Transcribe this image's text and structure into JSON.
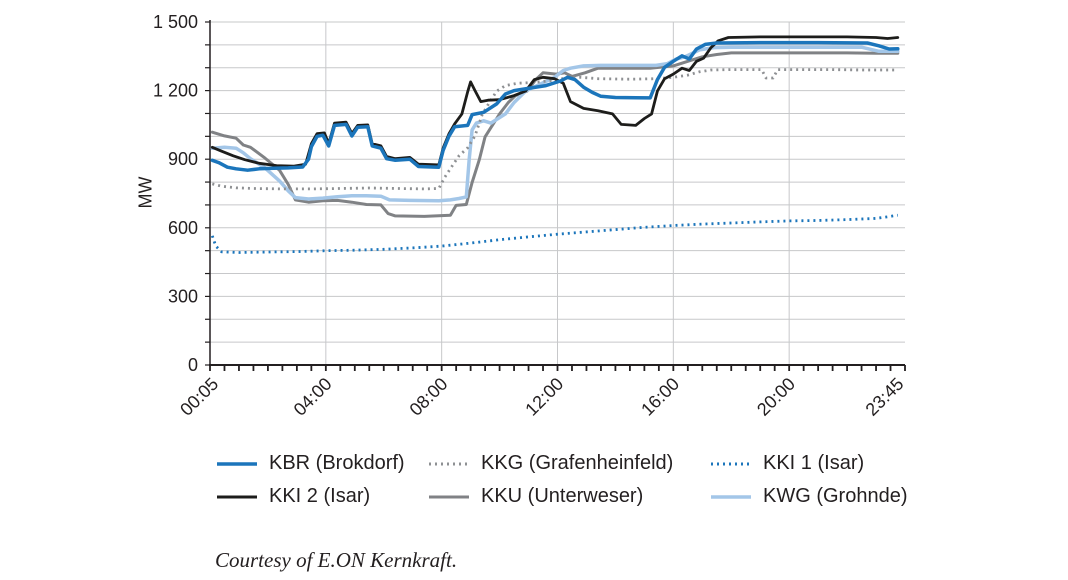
{
  "caption": "Courtesy of E.ON Kernkraft.",
  "chart_data": {
    "type": "line",
    "title": "",
    "xlabel": "",
    "ylabel": "MW",
    "ylim": [
      0,
      1500
    ],
    "xlim_hours": [
      0,
      24
    ],
    "grid": true,
    "grid_color": "#c7c8ca",
    "axis_color": "#231f20",
    "y_minor_step": 100,
    "y_major_ticks": [
      0,
      300,
      600,
      900,
      1200,
      1500
    ],
    "y_tick_labels": [
      "0",
      "300",
      "600",
      "900",
      "1 200",
      "1 500"
    ],
    "x_minor_step_hours": 0.5,
    "x_tick_hours": [
      0.083,
      4,
      8,
      12,
      16,
      20,
      23.75
    ],
    "x_tick_labels": [
      "00:05",
      "04:00",
      "08:00",
      "12:00",
      "16:00",
      "20:00",
      "23:45"
    ],
    "x_gridline_hours": [
      4,
      8,
      12,
      16,
      20
    ],
    "legend_position": "bottom",
    "series": [
      {
        "id": "kbr",
        "name": "KBR (Brokdorf)",
        "color": "#1b75bb",
        "style": "solid",
        "width": 3.5,
        "points": [
          [
            0.08,
            895
          ],
          [
            0.3,
            885
          ],
          [
            0.6,
            865
          ],
          [
            0.9,
            858
          ],
          [
            1.3,
            852
          ],
          [
            1.7,
            858
          ],
          [
            2.2,
            860
          ],
          [
            2.7,
            862
          ],
          [
            3.2,
            866
          ],
          [
            3.4,
            900
          ],
          [
            3.5,
            955
          ],
          [
            3.7,
            1000
          ],
          [
            3.9,
            1005
          ],
          [
            4.1,
            958
          ],
          [
            4.3,
            1048
          ],
          [
            4.7,
            1052
          ],
          [
            4.9,
            1002
          ],
          [
            5.1,
            1040
          ],
          [
            5.45,
            1042
          ],
          [
            5.6,
            958
          ],
          [
            5.9,
            948
          ],
          [
            6.1,
            902
          ],
          [
            6.4,
            895
          ],
          [
            6.9,
            900
          ],
          [
            7.2,
            868
          ],
          [
            7.9,
            865
          ],
          [
            8.05,
            938
          ],
          [
            8.25,
            1000
          ],
          [
            8.45,
            1042
          ],
          [
            8.9,
            1048
          ],
          [
            9.05,
            1095
          ],
          [
            9.45,
            1105
          ],
          [
            9.9,
            1142
          ],
          [
            10.2,
            1185
          ],
          [
            10.5,
            1200
          ],
          [
            11.1,
            1212
          ],
          [
            11.6,
            1222
          ],
          [
            12.1,
            1242
          ],
          [
            12.35,
            1258
          ],
          [
            12.6,
            1248
          ],
          [
            12.9,
            1215
          ],
          [
            13.2,
            1192
          ],
          [
            13.5,
            1175
          ],
          [
            14,
            1170
          ],
          [
            15.2,
            1168
          ],
          [
            15.45,
            1248
          ],
          [
            15.7,
            1302
          ],
          [
            16,
            1328
          ],
          [
            16.3,
            1352
          ],
          [
            16.55,
            1338
          ],
          [
            16.8,
            1382
          ],
          [
            17.1,
            1402
          ],
          [
            17.5,
            1408
          ],
          [
            19,
            1410
          ],
          [
            21,
            1410
          ],
          [
            22.7,
            1408
          ],
          [
            23.1,
            1396
          ],
          [
            23.45,
            1382
          ],
          [
            23.75,
            1383
          ]
        ]
      },
      {
        "id": "kkg",
        "name": "KKG (Grafenheinfeld)",
        "color": "#8e9093",
        "style": "dotted",
        "width": 2.8,
        "points": [
          [
            0.08,
            792
          ],
          [
            0.4,
            782
          ],
          [
            0.9,
            775
          ],
          [
            1.5,
            772
          ],
          [
            2.5,
            770
          ],
          [
            3.5,
            770
          ],
          [
            4.5,
            772
          ],
          [
            5.5,
            774
          ],
          [
            6.5,
            772
          ],
          [
            7.4,
            770
          ],
          [
            7.9,
            772
          ],
          [
            8.1,
            820
          ],
          [
            8.35,
            868
          ],
          [
            8.6,
            915
          ],
          [
            8.9,
            950
          ],
          [
            9.15,
            1002
          ],
          [
            9.4,
            1095
          ],
          [
            9.65,
            1148
          ],
          [
            9.9,
            1198
          ],
          [
            10.2,
            1222
          ],
          [
            10.6,
            1232
          ],
          [
            11.2,
            1236
          ],
          [
            11.8,
            1244
          ],
          [
            12.3,
            1255
          ],
          [
            12.8,
            1258
          ],
          [
            13.4,
            1252
          ],
          [
            14.5,
            1250
          ],
          [
            15.4,
            1252
          ],
          [
            16,
            1258
          ],
          [
            16.5,
            1268
          ],
          [
            16.9,
            1282
          ],
          [
            17.3,
            1290
          ],
          [
            18,
            1292
          ],
          [
            19.05,
            1292
          ],
          [
            19.2,
            1255
          ],
          [
            19.45,
            1255
          ],
          [
            19.6,
            1292
          ],
          [
            20.5,
            1292
          ],
          [
            21.5,
            1292
          ],
          [
            22.5,
            1290
          ],
          [
            23.75,
            1290
          ]
        ]
      },
      {
        "id": "kki1",
        "name": "KKI 1 (Isar)",
        "color": "#1b75bb",
        "style": "dotted",
        "width": 2.8,
        "points": [
          [
            0.08,
            565
          ],
          [
            0.2,
            520
          ],
          [
            0.4,
            495
          ],
          [
            1,
            492
          ],
          [
            2,
            494
          ],
          [
            3,
            496
          ],
          [
            4,
            500
          ],
          [
            5,
            502
          ],
          [
            6,
            506
          ],
          [
            7,
            512
          ],
          [
            8,
            520
          ],
          [
            9,
            533
          ],
          [
            10,
            548
          ],
          [
            11,
            560
          ],
          [
            12,
            572
          ],
          [
            13,
            582
          ],
          [
            14,
            592
          ],
          [
            15,
            602
          ],
          [
            16,
            610
          ],
          [
            17,
            616
          ],
          [
            18,
            621
          ],
          [
            19,
            626
          ],
          [
            20,
            630
          ],
          [
            21,
            632
          ],
          [
            22,
            636
          ],
          [
            23,
            641
          ],
          [
            23.4,
            648
          ],
          [
            23.75,
            655
          ]
        ]
      },
      {
        "id": "kki2",
        "name": "KKI 2 (Isar)",
        "color": "#1d1d1b",
        "style": "solid",
        "width": 2.8,
        "points": [
          [
            0.08,
            952
          ],
          [
            0.4,
            935
          ],
          [
            0.8,
            915
          ],
          [
            1.2,
            898
          ],
          [
            1.7,
            882
          ],
          [
            2.3,
            872
          ],
          [
            2.9,
            870
          ],
          [
            3.3,
            878
          ],
          [
            3.5,
            968
          ],
          [
            3.7,
            1012
          ],
          [
            3.95,
            1015
          ],
          [
            4.1,
            968
          ],
          [
            4.3,
            1058
          ],
          [
            4.7,
            1062
          ],
          [
            4.9,
            1012
          ],
          [
            5.1,
            1048
          ],
          [
            5.45,
            1050
          ],
          [
            5.6,
            968
          ],
          [
            5.9,
            958
          ],
          [
            6.1,
            912
          ],
          [
            6.4,
            902
          ],
          [
            6.9,
            908
          ],
          [
            7.2,
            878
          ],
          [
            7.9,
            875
          ],
          [
            8.05,
            948
          ],
          [
            8.25,
            1010
          ],
          [
            8.45,
            1055
          ],
          [
            8.7,
            1098
          ],
          [
            8.9,
            1195
          ],
          [
            9,
            1238
          ],
          [
            9.15,
            1200
          ],
          [
            9.35,
            1152
          ],
          [
            9.6,
            1158
          ],
          [
            10,
            1160
          ],
          [
            10.5,
            1178
          ],
          [
            10.9,
            1198
          ],
          [
            11.2,
            1248
          ],
          [
            11.5,
            1258
          ],
          [
            11.9,
            1252
          ],
          [
            12.2,
            1232
          ],
          [
            12.45,
            1152
          ],
          [
            12.9,
            1122
          ],
          [
            13.4,
            1112
          ],
          [
            13.9,
            1098
          ],
          [
            14.2,
            1052
          ],
          [
            14.7,
            1048
          ],
          [
            15,
            1078
          ],
          [
            15.25,
            1098
          ],
          [
            15.45,
            1198
          ],
          [
            15.7,
            1252
          ],
          [
            16,
            1272
          ],
          [
            16.3,
            1298
          ],
          [
            16.55,
            1288
          ],
          [
            16.8,
            1328
          ],
          [
            17.05,
            1342
          ],
          [
            17.3,
            1388
          ],
          [
            17.55,
            1418
          ],
          [
            17.9,
            1432
          ],
          [
            19,
            1435
          ],
          [
            20,
            1435
          ],
          [
            21,
            1435
          ],
          [
            22,
            1435
          ],
          [
            23,
            1432
          ],
          [
            23.4,
            1428
          ],
          [
            23.75,
            1432
          ]
        ]
      },
      {
        "id": "kku",
        "name": "KKU (Unterweser)",
        "color": "#808285",
        "style": "solid",
        "width": 3,
        "points": [
          [
            0.08,
            1018
          ],
          [
            0.5,
            1002
          ],
          [
            0.9,
            992
          ],
          [
            1.15,
            962
          ],
          [
            1.4,
            952
          ],
          [
            1.9,
            905
          ],
          [
            2.4,
            852
          ],
          [
            2.7,
            790
          ],
          [
            2.95,
            722
          ],
          [
            3.4,
            712
          ],
          [
            3.9,
            718
          ],
          [
            4.4,
            720
          ],
          [
            4.9,
            712
          ],
          [
            5.4,
            702
          ],
          [
            5.9,
            700
          ],
          [
            6.15,
            662
          ],
          [
            6.4,
            652
          ],
          [
            7.4,
            650
          ],
          [
            8.3,
            655
          ],
          [
            8.5,
            698
          ],
          [
            8.85,
            702
          ],
          [
            9.05,
            798
          ],
          [
            9.3,
            898
          ],
          [
            9.5,
            998
          ],
          [
            9.75,
            1048
          ],
          [
            10,
            1098
          ],
          [
            10.3,
            1148
          ],
          [
            10.55,
            1178
          ],
          [
            10.95,
            1198
          ],
          [
            11.25,
            1248
          ],
          [
            11.5,
            1278
          ],
          [
            11.95,
            1272
          ],
          [
            12.25,
            1278
          ],
          [
            12.5,
            1262
          ],
          [
            12.95,
            1278
          ],
          [
            13.4,
            1298
          ],
          [
            14.2,
            1298
          ],
          [
            15.2,
            1298
          ],
          [
            16,
            1308
          ],
          [
            16.5,
            1328
          ],
          [
            17,
            1348
          ],
          [
            17.5,
            1358
          ],
          [
            18,
            1365
          ],
          [
            19,
            1365
          ],
          [
            20.5,
            1365
          ],
          [
            22,
            1365
          ],
          [
            23,
            1363
          ],
          [
            23.75,
            1363
          ]
        ]
      },
      {
        "id": "kwg",
        "name": "KWG (Grohnde)",
        "color": "#a3c6e8",
        "style": "solid",
        "width": 3.5,
        "points": [
          [
            0.08,
            948
          ],
          [
            0.5,
            952
          ],
          [
            0.9,
            948
          ],
          [
            1.15,
            928
          ],
          [
            1.4,
            902
          ],
          [
            1.9,
            862
          ],
          [
            2.4,
            805
          ],
          [
            2.7,
            762
          ],
          [
            2.95,
            732
          ],
          [
            3.4,
            726
          ],
          [
            3.9,
            730
          ],
          [
            4.4,
            736
          ],
          [
            4.9,
            740
          ],
          [
            5.4,
            740
          ],
          [
            5.9,
            738
          ],
          [
            6.2,
            722
          ],
          [
            6.9,
            720
          ],
          [
            7.9,
            718
          ],
          [
            8.3,
            722
          ],
          [
            8.6,
            728
          ],
          [
            8.85,
            735
          ],
          [
            8.95,
            900
          ],
          [
            9.05,
            1028
          ],
          [
            9.2,
            1058
          ],
          [
            9.45,
            1068
          ],
          [
            9.7,
            1058
          ],
          [
            9.95,
            1078
          ],
          [
            10.2,
            1098
          ],
          [
            10.5,
            1148
          ],
          [
            10.9,
            1198
          ],
          [
            11.4,
            1228
          ],
          [
            11.9,
            1258
          ],
          [
            12.2,
            1288
          ],
          [
            12.45,
            1298
          ],
          [
            12.9,
            1308
          ],
          [
            13.5,
            1310
          ],
          [
            14.5,
            1310
          ],
          [
            15.4,
            1310
          ],
          [
            15.8,
            1318
          ],
          [
            16.1,
            1338
          ],
          [
            16.4,
            1348
          ],
          [
            16.9,
            1378
          ],
          [
            17.4,
            1388
          ],
          [
            18,
            1390
          ],
          [
            19.5,
            1390
          ],
          [
            21,
            1390
          ],
          [
            22.5,
            1390
          ],
          [
            23.1,
            1372
          ],
          [
            23.75,
            1372
          ]
        ]
      }
    ]
  }
}
